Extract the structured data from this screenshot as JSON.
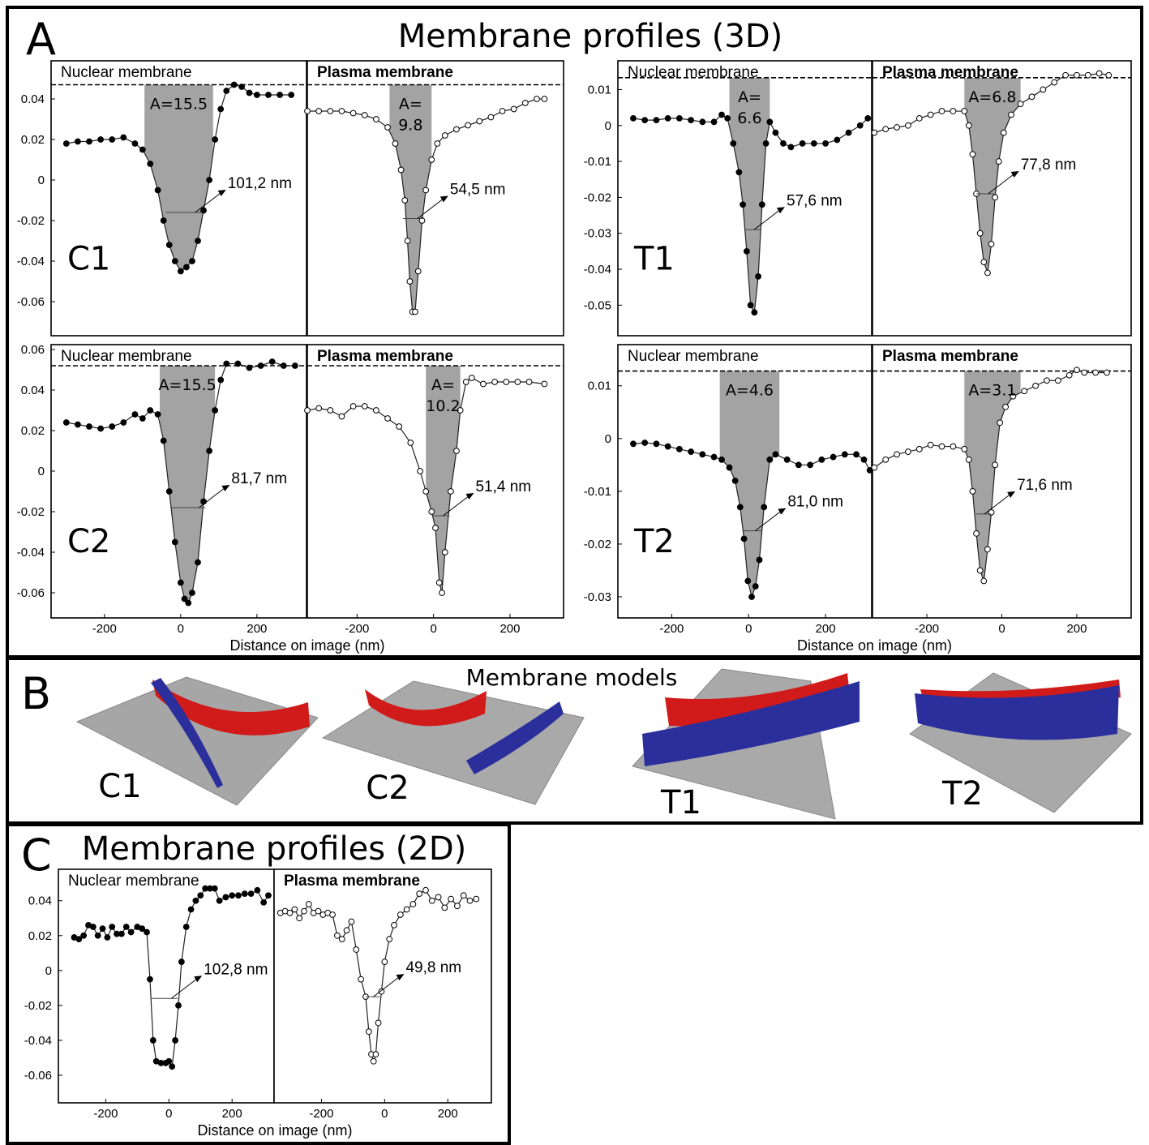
{
  "figure": {
    "panels": [
      {
        "letter": "A",
        "title": "Membrane profiles (3D)"
      },
      {
        "letter": "B",
        "title": "Membrane models",
        "models": [
          "C1",
          "C2",
          "T1",
          "T2"
        ]
      },
      {
        "letter": "C",
        "title": "Membrane profiles (2D)"
      }
    ]
  },
  "chart_data": [
    {
      "type": "line",
      "title": "Nuclear membrane",
      "sample": "C1",
      "marker": "filled",
      "x": [
        -300,
        -270,
        -240,
        -210,
        -180,
        -150,
        -120,
        -100,
        -80,
        -60,
        -45,
        -30,
        -15,
        0,
        15,
        30,
        45,
        60,
        75,
        90,
        105,
        120,
        140,
        160,
        180,
        200,
        230,
        260,
        290
      ],
      "values": [
        0.018,
        0.019,
        0.019,
        0.02,
        0.02,
        0.021,
        0.018,
        0.015,
        0.008,
        -0.005,
        -0.02,
        -0.032,
        -0.04,
        -0.045,
        -0.043,
        -0.04,
        -0.03,
        -0.015,
        0.0,
        0.02,
        0.035,
        0.044,
        0.047,
        0.046,
        0.043,
        0.042,
        0.042,
        0.042,
        0.042
      ],
      "xlim": [
        -340,
        330
      ],
      "ylim": [
        -0.0768,
        0.0588
      ],
      "yticks": [
        0.04,
        0.02,
        0,
        -0.02,
        -0.04,
        -0.06
      ],
      "baseline": 0.047,
      "shade": [
        -95,
        85
      ],
      "area_label": [
        "A=15.5"
      ],
      "width_label": "101,2 nm",
      "fwhm_y": -0.016,
      "fwhm_x": [
        -40,
        55
      ]
    },
    {
      "type": "line",
      "title": "Plasma membrane",
      "marker": "open",
      "x": [
        -330,
        -300,
        -270,
        -240,
        -210,
        -180,
        -150,
        -120,
        -100,
        -85,
        -75,
        -68,
        -62,
        -55,
        -48,
        -40,
        -30,
        -20,
        -5,
        10,
        30,
        60,
        90,
        120,
        150,
        180,
        210,
        240,
        270,
        290
      ],
      "values": [
        0.034,
        0.034,
        0.034,
        0.034,
        0.033,
        0.032,
        0.03,
        0.026,
        0.018,
        0.005,
        -0.01,
        -0.03,
        -0.05,
        -0.065,
        -0.065,
        -0.045,
        -0.02,
        -0.005,
        0.01,
        0.018,
        0.022,
        0.025,
        0.027,
        0.029,
        0.031,
        0.034,
        0.035,
        0.038,
        0.04,
        0.04
      ],
      "xlim": [
        -330,
        340
      ],
      "ylim": [
        -0.0768,
        0.0588
      ],
      "baseline": 0.047,
      "shade": [
        -115,
        -5
      ],
      "area_label": [
        "A=",
        "9.8"
      ],
      "width_label": "54,5 nm",
      "fwhm_y": -0.019,
      "fwhm_x": [
        -80,
        -25
      ]
    },
    {
      "type": "line",
      "title": "Nuclear membrane",
      "sample": "C2",
      "marker": "filled",
      "x": [
        -300,
        -270,
        -240,
        -210,
        -180,
        -150,
        -120,
        -100,
        -80,
        -60,
        -45,
        -30,
        -15,
        0,
        10,
        20,
        30,
        45,
        60,
        75,
        90,
        105,
        120,
        150,
        180,
        210,
        240,
        270,
        300
      ],
      "values": [
        0.024,
        0.023,
        0.022,
        0.021,
        0.022,
        0.024,
        0.028,
        0.026,
        0.03,
        0.028,
        0.015,
        -0.01,
        -0.035,
        -0.055,
        -0.063,
        -0.065,
        -0.06,
        -0.045,
        -0.015,
        0.01,
        0.03,
        0.045,
        0.053,
        0.053,
        0.051,
        0.052,
        0.054,
        0.052,
        0.052
      ],
      "xlim": [
        -340,
        330
      ],
      "ylim": [
        -0.0724,
        0.0624
      ],
      "yticks": [
        0.06,
        0.04,
        0.02,
        0,
        -0.02,
        -0.04,
        -0.06
      ],
      "xticks": [
        -200,
        0,
        200
      ],
      "xlabel": "Distance on image (nm)",
      "baseline": 0.052,
      "shade": [
        -55,
        90
      ],
      "area_label": [
        "A=15.5"
      ],
      "width_label": "81,7 nm",
      "fwhm_y": -0.018,
      "fwhm_x": [
        -25,
        65
      ]
    },
    {
      "type": "line",
      "title": "Plasma membrane",
      "marker": "open",
      "x": [
        -330,
        -300,
        -270,
        -240,
        -210,
        -180,
        -150,
        -120,
        -90,
        -60,
        -35,
        -20,
        -5,
        5,
        15,
        22,
        30,
        45,
        60,
        70,
        85,
        100,
        130,
        160,
        190,
        220,
        250,
        290
      ],
      "values": [
        0.03,
        0.031,
        0.03,
        0.027,
        0.032,
        0.032,
        0.03,
        0.026,
        0.022,
        0.014,
        0.0,
        -0.01,
        -0.02,
        -0.028,
        -0.055,
        -0.06,
        -0.04,
        -0.01,
        0.01,
        0.03,
        0.044,
        0.046,
        0.043,
        0.044,
        0.044,
        0.044,
        0.044,
        0.043
      ],
      "xlim": [
        -330,
        340
      ],
      "ylim": [
        -0.0724,
        0.0624
      ],
      "xticks": [
        -200,
        0,
        200
      ],
      "baseline": 0.052,
      "shade": [
        -20,
        70
      ],
      "area_label": [
        "A=",
        "10.2"
      ],
      "width_label": "51,4 nm",
      "fwhm_y": -0.022,
      "fwhm_x": [
        -2,
        42
      ]
    },
    {
      "type": "line",
      "title": "Nuclear membrane",
      "sample": "T1",
      "marker": "filled",
      "x": [
        -300,
        -270,
        -240,
        -210,
        -180,
        -150,
        -120,
        -90,
        -70,
        -55,
        -40,
        -25,
        -15,
        -5,
        5,
        15,
        25,
        35,
        45,
        55,
        70,
        90,
        110,
        140,
        170,
        200,
        230,
        260,
        290,
        310
      ],
      "values": [
        0.002,
        0.0015,
        0.0015,
        0.002,
        0.002,
        0.0015,
        0.001,
        0.001,
        0.003,
        0.002,
        -0.005,
        -0.013,
        -0.022,
        -0.035,
        -0.05,
        -0.052,
        -0.042,
        -0.022,
        -0.005,
        0.001,
        -0.002,
        -0.005,
        -0.006,
        -0.005,
        -0.005,
        -0.005,
        -0.004,
        -0.002,
        0.0,
        0.002
      ],
      "xlim": [
        -340,
        320
      ],
      "ylim": [
        -0.0585,
        0.018
      ],
      "yticks": [
        0.01,
        0,
        -0.01,
        -0.02,
        -0.03,
        -0.04,
        -0.05
      ],
      "baseline": 0.0133,
      "shade": [
        -50,
        55
      ],
      "area_label": [
        "A=",
        "6.6"
      ],
      "width_label": "57,6 nm",
      "fwhm_y": -0.029,
      "fwhm_x": [
        -10,
        31
      ]
    },
    {
      "type": "line",
      "title": "Plasma membrane",
      "marker": "open",
      "x": [
        -340,
        -310,
        -280,
        -250,
        -220,
        -190,
        -160,
        -130,
        -100,
        -88,
        -78,
        -68,
        -58,
        -48,
        -38,
        -28,
        -18,
        -8,
        5,
        25,
        50,
        80,
        110,
        140,
        170,
        200,
        230,
        260,
        285
      ],
      "values": [
        -0.002,
        -0.001,
        -0.0005,
        0.0,
        0.002,
        0.003,
        0.004,
        0.004,
        0.004,
        0.0,
        -0.008,
        -0.019,
        -0.03,
        -0.038,
        -0.041,
        -0.033,
        -0.02,
        -0.01,
        -0.002,
        0.003,
        0.006,
        0.008,
        0.01,
        0.012,
        0.014,
        0.014,
        0.014,
        0.0145,
        0.014
      ],
      "xlim": [
        -345,
        345
      ],
      "ylim": [
        -0.0585,
        0.018
      ],
      "baseline": 0.0133,
      "shade": [
        -100,
        50
      ],
      "area_label": [
        "A=6.8"
      ],
      "width_label": "77,8 nm",
      "fwhm_y": -0.019,
      "fwhm_x": [
        -68,
        -19
      ]
    },
    {
      "type": "line",
      "title": "Nuclear membrane",
      "sample": "T2",
      "marker": "filled",
      "x": [
        -300,
        -270,
        -240,
        -210,
        -180,
        -150,
        -120,
        -90,
        -70,
        -50,
        -35,
        -22,
        -12,
        -2,
        8,
        18,
        28,
        40,
        55,
        70,
        100,
        130,
        160,
        190,
        220,
        250,
        280,
        300,
        315
      ],
      "values": [
        -0.001,
        -0.0008,
        -0.001,
        -0.0015,
        -0.002,
        -0.0025,
        -0.003,
        -0.0035,
        -0.004,
        -0.0055,
        -0.008,
        -0.013,
        -0.019,
        -0.027,
        -0.03,
        -0.028,
        -0.023,
        -0.013,
        -0.004,
        -0.003,
        -0.004,
        -0.005,
        -0.005,
        -0.004,
        -0.0035,
        -0.003,
        -0.003,
        -0.004,
        -0.006
      ],
      "xlim": [
        -340,
        320
      ],
      "ylim": [
        -0.034,
        0.0178
      ],
      "yticks": [
        0.01,
        0,
        -0.01,
        -0.02,
        -0.03
      ],
      "xticks": [
        -200,
        0,
        200
      ],
      "xlabel": "Distance on image (nm)",
      "baseline": 0.0128,
      "shade": [
        -75,
        80
      ],
      "area_label": [
        "A=4.6"
      ],
      "width_label": "81,0 nm",
      "fwhm_y": -0.0175,
      "fwhm_x": [
        -14,
        34
      ]
    },
    {
      "type": "line",
      "title": "Plasma membrane",
      "marker": "open",
      "x": [
        -340,
        -310,
        -280,
        -250,
        -220,
        -190,
        -160,
        -130,
        -100,
        -88,
        -78,
        -68,
        -58,
        -48,
        -38,
        -28,
        -18,
        -5,
        10,
        30,
        60,
        90,
        120,
        150,
        180,
        200,
        220,
        250,
        280
      ],
      "values": [
        -0.0055,
        -0.004,
        -0.003,
        -0.0025,
        -0.002,
        -0.0012,
        -0.0015,
        -0.0015,
        -0.002,
        -0.004,
        -0.01,
        -0.018,
        -0.025,
        -0.027,
        -0.021,
        -0.014,
        -0.005,
        0.003,
        0.006,
        0.008,
        0.009,
        0.01,
        0.011,
        0.011,
        0.012,
        0.013,
        0.0125,
        0.0125,
        0.0125
      ],
      "xlim": [
        -345,
        345
      ],
      "ylim": [
        -0.034,
        0.0178
      ],
      "xticks": [
        -200,
        0,
        200
      ],
      "baseline": 0.0128,
      "shade": [
        -100,
        50
      ],
      "area_label": [
        "A=3.1"
      ],
      "width_label": "71,6 nm",
      "fwhm_y": -0.0143,
      "fwhm_x": [
        -69,
        -29
      ]
    },
    {
      "type": "line",
      "title": "Nuclear membrane",
      "marker": "filled",
      "x": [
        -300,
        -285,
        -270,
        -255,
        -240,
        -225,
        -210,
        -195,
        -180,
        -165,
        -150,
        -135,
        -120,
        -100,
        -85,
        -70,
        -60,
        -50,
        -40,
        -25,
        -10,
        0,
        10,
        20,
        30,
        40,
        55,
        70,
        85,
        100,
        115,
        130,
        145,
        160,
        180,
        200,
        220,
        240,
        260,
        280,
        300,
        315
      ],
      "values": [
        0.019,
        0.018,
        0.02,
        0.026,
        0.025,
        0.02,
        0.024,
        0.019,
        0.025,
        0.021,
        0.021,
        0.025,
        0.022,
        0.025,
        0.024,
        0.022,
        -0.005,
        -0.04,
        -0.052,
        -0.053,
        -0.053,
        -0.052,
        -0.055,
        -0.04,
        -0.02,
        0.005,
        0.025,
        0.035,
        0.04,
        0.043,
        0.047,
        0.047,
        0.047,
        0.04,
        0.042,
        0.043,
        0.043,
        0.044,
        0.044,
        0.046,
        0.039,
        0.043
      ],
      "xlim": [
        -350,
        333
      ],
      "ylim": [
        -0.0758,
        0.058
      ],
      "yticks": [
        0.04,
        0.02,
        0,
        -0.02,
        -0.04,
        -0.06
      ],
      "xticks": [
        -200,
        0,
        200
      ],
      "xlabel": "Distance on image (nm)",
      "width_label": "102,8 nm",
      "fwhm_y": -0.016,
      "fwhm_x": [
        -55,
        28
      ]
    },
    {
      "type": "line",
      "title": "Plasma membrane",
      "marker": "open",
      "x": [
        -330,
        -315,
        -300,
        -285,
        -270,
        -255,
        -240,
        -225,
        -210,
        -195,
        -180,
        -165,
        -150,
        -135,
        -120,
        -105,
        -90,
        -75,
        -60,
        -50,
        -42,
        -35,
        -28,
        -20,
        -10,
        0,
        15,
        30,
        50,
        70,
        90,
        110,
        130,
        150,
        170,
        190,
        210,
        230,
        250,
        270,
        290
      ],
      "values": [
        0.033,
        0.034,
        0.033,
        0.035,
        0.03,
        0.034,
        0.038,
        0.033,
        0.034,
        0.032,
        0.033,
        0.032,
        0.02,
        0.018,
        0.023,
        0.028,
        0.012,
        -0.005,
        -0.015,
        -0.035,
        -0.048,
        -0.052,
        -0.048,
        -0.03,
        -0.012,
        0.005,
        0.018,
        0.026,
        0.032,
        0.035,
        0.038,
        0.044,
        0.046,
        0.04,
        0.042,
        0.036,
        0.041,
        0.037,
        0.043,
        0.04,
        0.041
      ],
      "xlim": [
        -350,
        338
      ],
      "ylim": [
        -0.0758,
        0.058
      ],
      "xticks": [
        -200,
        0,
        200
      ],
      "width_label": "49,8 nm",
      "fwhm_y": -0.015,
      "fwhm_x": [
        -60,
        -15
      ]
    }
  ]
}
